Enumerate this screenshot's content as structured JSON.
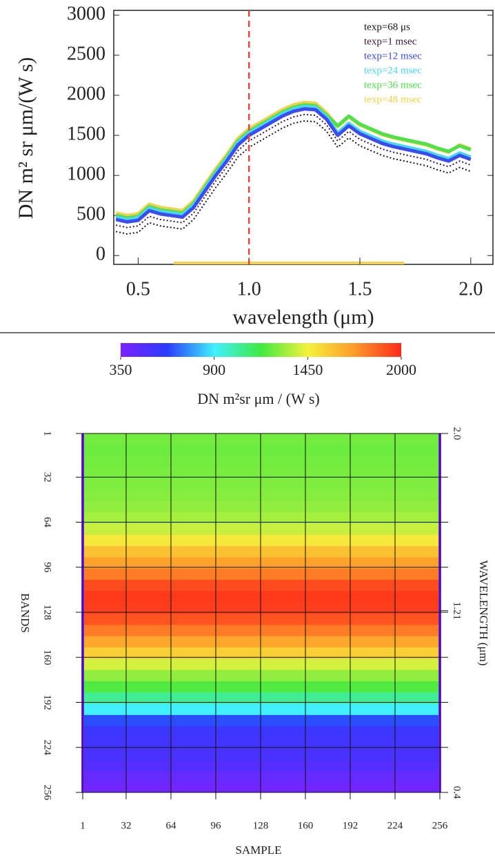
{
  "chart_data": [
    {
      "type": "line",
      "ylabel": "DN m² sr μm/(W s)",
      "xlabel": "wavelength (μm)",
      "x": [
        0.4,
        0.45,
        0.5,
        0.55,
        0.6,
        0.65,
        0.7,
        0.75,
        0.8,
        0.85,
        0.9,
        0.95,
        1.0,
        1.05,
        1.1,
        1.15,
        1.2,
        1.25,
        1.3,
        1.35,
        1.4,
        1.45,
        1.5,
        1.55,
        1.6,
        1.65,
        1.7,
        1.75,
        1.8,
        1.85,
        1.9,
        1.95,
        2.0
      ],
      "series": [
        {
          "name": "texp=68 μs",
          "color": "#1a0f1a",
          "values": [
            300,
            270,
            290,
            410,
            370,
            350,
            330,
            450,
            650,
            850,
            1030,
            1230,
            1350,
            1430,
            1510,
            1590,
            1650,
            1680,
            1670,
            1550,
            1350,
            1470,
            1370,
            1310,
            1250,
            1210,
            1180,
            1150,
            1120,
            1070,
            1030,
            1100,
            1050
          ]
        },
        {
          "name": "texp=1 msec",
          "color": "#3a1440",
          "values": [
            380,
            350,
            370,
            490,
            450,
            430,
            410,
            530,
            730,
            930,
            1110,
            1310,
            1430,
            1510,
            1590,
            1670,
            1730,
            1760,
            1750,
            1630,
            1430,
            1550,
            1450,
            1390,
            1330,
            1290,
            1260,
            1230,
            1200,
            1150,
            1110,
            1180,
            1130
          ]
        },
        {
          "name": "texp=12 msec",
          "color": "#3b4cf0",
          "values": [
            450,
            420,
            440,
            560,
            520,
            500,
            480,
            600,
            800,
            1000,
            1180,
            1380,
            1500,
            1580,
            1660,
            1740,
            1800,
            1830,
            1820,
            1700,
            1500,
            1620,
            1520,
            1460,
            1400,
            1360,
            1330,
            1300,
            1270,
            1220,
            1180,
            1250,
            1200
          ]
        },
        {
          "name": "texp=24 msec",
          "color": "#49d6f0",
          "values": [
            480,
            450,
            470,
            590,
            550,
            530,
            510,
            630,
            830,
            1030,
            1210,
            1410,
            1530,
            1610,
            1690,
            1770,
            1830,
            1860,
            1850,
            1730,
            1530,
            1650,
            1550,
            1490,
            1430,
            1390,
            1360,
            1330,
            1300,
            1250,
            1210,
            1280,
            1230
          ]
        },
        {
          "name": "texp=36 msec",
          "color": "#4fe04a",
          "values": [
            500,
            470,
            490,
            610,
            570,
            550,
            530,
            650,
            850,
            1050,
            1230,
            1430,
            1550,
            1630,
            1710,
            1790,
            1850,
            1880,
            1870,
            1750,
            1620,
            1740,
            1640,
            1580,
            1520,
            1480,
            1450,
            1420,
            1390,
            1340,
            1300,
            1370,
            1320
          ]
        },
        {
          "name": "texp=48 msec",
          "color": "#f2d24a",
          "values": [
            530,
            500,
            520,
            640,
            600,
            580,
            560,
            680,
            880,
            1080,
            1260,
            1460,
            1580,
            1660,
            1740,
            1820,
            1880,
            1910,
            1900,
            1780,
            1610,
            1730,
            1630,
            1570,
            1510,
            1470,
            1440,
            1410,
            1380,
            1330,
            1290,
            1380,
            1330
          ]
        }
      ],
      "xlim": [
        0.39,
        2.1
      ],
      "ylim": [
        -110,
        3060
      ],
      "xticks": [
        0.5,
        {
          "value": 1,
          "label": "1.0"
        },
        1.5,
        {
          "value": 2,
          "label": "2.0"
        }
      ],
      "yticks": [
        0,
        500,
        1000,
        1500,
        2000,
        2500,
        3000
      ],
      "vline": {
        "x": 1,
        "color": "#e8453c"
      },
      "xspan": {
        "range": [
          0.66,
          1.7
        ],
        "color": "#f2d24a"
      }
    },
    {
      "type": "heatmap",
      "colorbar_label": "DN m²sr  μm / (W s)",
      "xlabel": "SAMPLE",
      "ylabel": "BANDS",
      "y2label": "WAVELENGTH (μm)",
      "clim": [
        350,
        2000
      ],
      "cticks": [
        350,
        900,
        1450,
        2000
      ],
      "colormap": [
        "#7a22ff",
        "#2a3cff",
        "#40f0ff",
        "#40ea40",
        "#f4f23c",
        "#ff9a2a",
        "#ff2a1a"
      ],
      "xlim": [
        1,
        256
      ],
      "xticks": [
        1,
        32,
        64,
        96,
        128,
        160,
        192,
        224,
        256
      ],
      "ylim": [
        1,
        256
      ],
      "yticks": [
        1,
        32,
        64,
        96,
        128,
        160,
        192,
        224,
        256
      ],
      "y2lim": [
        2,
        0.4
      ],
      "y2ticks": [
        {
          "value": 2,
          "label": "2.0"
        },
        1.21,
        0.4
      ],
      "bands": [
        1,
        9,
        17,
        25,
        33,
        41,
        49,
        57,
        65,
        73,
        81,
        89,
        97,
        105,
        113,
        121,
        129,
        137,
        145,
        153,
        161,
        169,
        177,
        185,
        193,
        201,
        209,
        217,
        225,
        233,
        241,
        249
      ],
      "values": [
        1250,
        1240,
        1250,
        1260,
        1270,
        1280,
        1300,
        1330,
        1380,
        1480,
        1600,
        1700,
        1800,
        1920,
        1960,
        1950,
        1900,
        1800,
        1680,
        1560,
        1400,
        1300,
        1200,
        1050,
        900,
        650,
        560,
        540,
        520,
        480,
        420,
        380
      ]
    }
  ]
}
